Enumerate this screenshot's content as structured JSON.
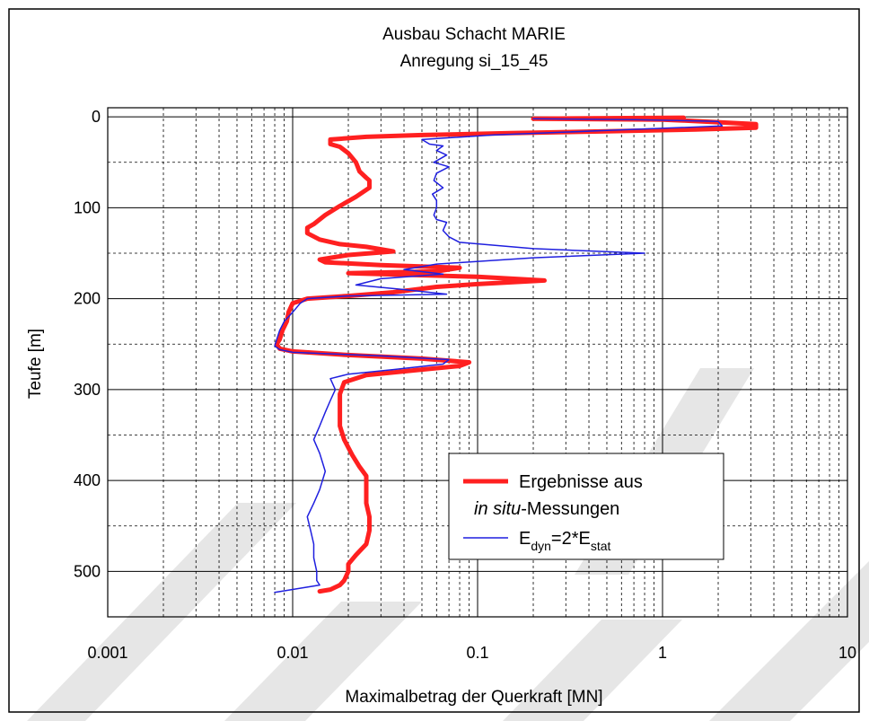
{
  "chart_data": {
    "type": "line",
    "title": "Ausbau Schacht MARIE",
    "subtitle": "Anregung si_15_45",
    "xlabel": "Maximalbetrag der Querkraft [MN]",
    "ylabel": "Teufe [m]",
    "x_scale": "log",
    "xlim": [
      0.001,
      10
    ],
    "ylim": [
      550,
      -10
    ],
    "x_ticks": [
      "0.001",
      "0.01",
      "0.1",
      "1",
      "10"
    ],
    "y_ticks": [
      "0",
      "100",
      "200",
      "300",
      "400",
      "500"
    ],
    "grid": true,
    "legend_position": "bottom-right",
    "legend": {
      "line1": "Ergebnisse aus",
      "line2_italic": "in situ",
      "line2_rest": "-Messungen",
      "e_dyn": "E",
      "e_dyn_sub": "dyn",
      "e_mid": "=2*E",
      "e_stat_sub": "stat"
    },
    "series": [
      {
        "name": "Ergebnisse aus in situ-Messungen",
        "color": "#ff2020",
        "line_width": 5,
        "points": [
          [
            1.3,
            1
          ],
          [
            0.2,
            2
          ],
          [
            1.0,
            3
          ],
          [
            1.3,
            4
          ],
          [
            3.2,
            8
          ],
          [
            3.2,
            12
          ],
          [
            1.5,
            14
          ],
          [
            0.5,
            16
          ],
          [
            0.15,
            18
          ],
          [
            0.05,
            20
          ],
          [
            0.025,
            22
          ],
          [
            0.016,
            25
          ],
          [
            0.016,
            30
          ],
          [
            0.018,
            33
          ],
          [
            0.02,
            40
          ],
          [
            0.022,
            50
          ],
          [
            0.023,
            60
          ],
          [
            0.025,
            67
          ],
          [
            0.026,
            70
          ],
          [
            0.026,
            78
          ],
          [
            0.022,
            88
          ],
          [
            0.018,
            98
          ],
          [
            0.015,
            108
          ],
          [
            0.013,
            118
          ],
          [
            0.012,
            122
          ],
          [
            0.012,
            128
          ],
          [
            0.014,
            135
          ],
          [
            0.018,
            140
          ],
          [
            0.025,
            143
          ],
          [
            0.035,
            148
          ],
          [
            0.02,
            152
          ],
          [
            0.014,
            157
          ],
          [
            0.015,
            160
          ],
          [
            0.03,
            163
          ],
          [
            0.08,
            166
          ],
          [
            0.06,
            170
          ],
          [
            0.02,
            172
          ],
          [
            0.1,
            176
          ],
          [
            0.23,
            180
          ],
          [
            0.1,
            184
          ],
          [
            0.06,
            187
          ],
          [
            0.035,
            193
          ],
          [
            0.02,
            197
          ],
          [
            0.012,
            200
          ],
          [
            0.01,
            205
          ],
          [
            0.0095,
            215
          ],
          [
            0.0093,
            225
          ],
          [
            0.0088,
            235
          ],
          [
            0.0085,
            245
          ],
          [
            0.0082,
            250
          ],
          [
            0.0085,
            255
          ],
          [
            0.01,
            258
          ],
          [
            0.02,
            262
          ],
          [
            0.05,
            266
          ],
          [
            0.09,
            270
          ],
          [
            0.08,
            274
          ],
          [
            0.05,
            278
          ],
          [
            0.025,
            284
          ],
          [
            0.019,
            292
          ],
          [
            0.018,
            305
          ],
          [
            0.018,
            320
          ],
          [
            0.018,
            340
          ],
          [
            0.019,
            355
          ],
          [
            0.021,
            372
          ],
          [
            0.023,
            385
          ],
          [
            0.025,
            395
          ],
          [
            0.025,
            410
          ],
          [
            0.025,
            425
          ],
          [
            0.026,
            440
          ],
          [
            0.026,
            455
          ],
          [
            0.025,
            470
          ],
          [
            0.022,
            482
          ],
          [
            0.02,
            492
          ],
          [
            0.02,
            500
          ],
          [
            0.019,
            510
          ],
          [
            0.018,
            515
          ],
          [
            0.016,
            520
          ],
          [
            0.014,
            522
          ]
        ]
      },
      {
        "name": "E_dyn=2*E_stat",
        "color": "#1f1fdf",
        "line_width": 1.5,
        "points": [
          [
            0.2,
            2
          ],
          [
            0.7,
            3
          ],
          [
            2.0,
            5
          ],
          [
            2.1,
            10
          ],
          [
            0.5,
            15
          ],
          [
            0.12,
            20
          ],
          [
            0.05,
            25
          ],
          [
            0.055,
            30
          ],
          [
            0.065,
            32
          ],
          [
            0.06,
            37
          ],
          [
            0.068,
            42
          ],
          [
            0.058,
            50
          ],
          [
            0.07,
            55
          ],
          [
            0.06,
            62
          ],
          [
            0.058,
            70
          ],
          [
            0.065,
            78
          ],
          [
            0.057,
            85
          ],
          [
            0.06,
            92
          ],
          [
            0.06,
            100
          ],
          [
            0.058,
            108
          ],
          [
            0.06,
            113
          ],
          [
            0.068,
            116
          ],
          [
            0.065,
            125
          ],
          [
            0.07,
            132
          ],
          [
            0.08,
            138
          ],
          [
            0.2,
            145
          ],
          [
            0.8,
            150
          ],
          [
            0.2,
            155
          ],
          [
            0.06,
            162
          ],
          [
            0.04,
            168
          ],
          [
            0.065,
            173
          ],
          [
            0.03,
            178
          ],
          [
            0.022,
            185
          ],
          [
            0.04,
            190
          ],
          [
            0.068,
            195
          ],
          [
            0.02,
            197
          ],
          [
            0.012,
            200
          ],
          [
            0.011,
            205
          ],
          [
            0.01,
            215
          ],
          [
            0.009,
            225
          ],
          [
            0.0085,
            235
          ],
          [
            0.0082,
            245
          ],
          [
            0.008,
            252
          ],
          [
            0.0085,
            256
          ],
          [
            0.01,
            259
          ],
          [
            0.03,
            263
          ],
          [
            0.07,
            267
          ],
          [
            0.065,
            272
          ],
          [
            0.035,
            278
          ],
          [
            0.02,
            283
          ],
          [
            0.016,
            288
          ],
          [
            0.017,
            300
          ],
          [
            0.016,
            312
          ],
          [
            0.015,
            325
          ],
          [
            0.014,
            340
          ],
          [
            0.013,
            355
          ],
          [
            0.014,
            370
          ],
          [
            0.015,
            390
          ],
          [
            0.014,
            410
          ],
          [
            0.013,
            425
          ],
          [
            0.012,
            440
          ],
          [
            0.0125,
            455
          ],
          [
            0.013,
            470
          ],
          [
            0.013,
            485
          ],
          [
            0.0135,
            500
          ],
          [
            0.0135,
            510
          ],
          [
            0.014,
            515
          ],
          [
            0.008,
            523
          ]
        ]
      }
    ]
  }
}
